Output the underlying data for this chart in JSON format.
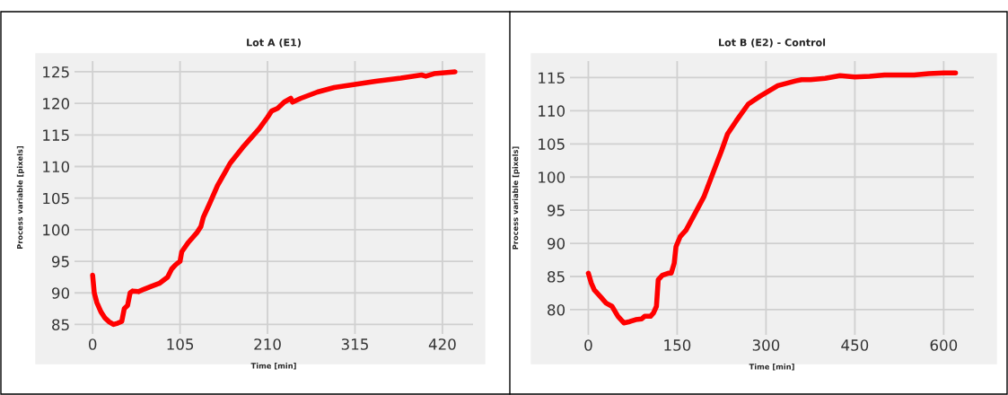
{
  "chart_data": [
    {
      "type": "line",
      "title": "Lot A (E1)",
      "xlabel": "Time [min]",
      "ylabel": "Process variable [pixels]",
      "xlim": [
        -21.75,
        456.75
      ],
      "ylim": [
        83.5,
        126.7
      ],
      "xticks": [
        0,
        105,
        210,
        315,
        420
      ],
      "yticks": [
        85,
        90,
        95,
        100,
        105,
        110,
        115,
        120,
        125
      ],
      "grid": true,
      "legend": false,
      "marker": "none",
      "line_style": "solid",
      "series": [
        {
          "color": "#ff0000",
          "x": [
            0,
            2,
            5,
            10,
            15,
            20,
            25,
            30,
            35,
            38,
            42,
            45,
            48,
            55,
            62,
            70,
            80,
            90,
            95,
            100,
            105,
            107,
            115,
            125,
            130,
            133,
            140,
            150,
            165,
            180,
            190,
            200,
            210,
            215,
            222,
            230,
            238,
            240,
            250,
            260,
            270,
            290,
            315,
            340,
            370,
            395,
            400,
            410,
            435
          ],
          "values": [
            92.8,
            90,
            88.5,
            87,
            86,
            85.4,
            85,
            85.2,
            85.5,
            87.5,
            88,
            90,
            90.3,
            90.2,
            90.6,
            91,
            91.5,
            92.5,
            93.8,
            94.5,
            95,
            96.5,
            98,
            99.5,
            100.5,
            102,
            104,
            107,
            110.5,
            113,
            114.5,
            116,
            117.8,
            118.8,
            119.2,
            120.2,
            120.8,
            120.2,
            120.8,
            121.3,
            121.8,
            122.5,
            123,
            123.5,
            124,
            124.5,
            124.3,
            124.7,
            125
          ]
        }
      ]
    },
    {
      "type": "line",
      "title": "Lot B (E2) - Control",
      "xlabel": "Time [min]",
      "ylabel": "Process variable [pixels]",
      "xlim": [
        -31,
        651
      ],
      "ylim": [
        76.2,
        117.5
      ],
      "xticks": [
        0,
        150,
        300,
        450,
        600
      ],
      "yticks": [
        80,
        85,
        90,
        95,
        100,
        105,
        110,
        115
      ],
      "grid": true,
      "legend": false,
      "marker": "none",
      "line_style": "solid",
      "series": [
        {
          "color": "#ff0000",
          "x": [
            0,
            5,
            10,
            20,
            30,
            40,
            50,
            60,
            70,
            80,
            90,
            95,
            105,
            110,
            115,
            118,
            125,
            135,
            140,
            145,
            148,
            155,
            165,
            180,
            195,
            210,
            225,
            235,
            250,
            270,
            290,
            320,
            350,
            360,
            375,
            400,
            425,
            450,
            475,
            500,
            525,
            550,
            575,
            600,
            620
          ],
          "values": [
            85.5,
            84,
            83,
            82,
            81,
            80.5,
            79,
            78,
            78.2,
            78.5,
            78.6,
            79,
            79,
            79.5,
            80.5,
            84.5,
            85.2,
            85.5,
            85.5,
            87,
            89.5,
            91,
            92,
            94.5,
            97,
            100.5,
            104,
            106.5,
            108.5,
            111,
            112.2,
            113.8,
            114.5,
            114.7,
            114.7,
            114.9,
            115.3,
            115.1,
            115.2,
            115.4,
            115.4,
            115.4,
            115.6,
            115.7,
            115.7
          ]
        }
      ]
    }
  ]
}
